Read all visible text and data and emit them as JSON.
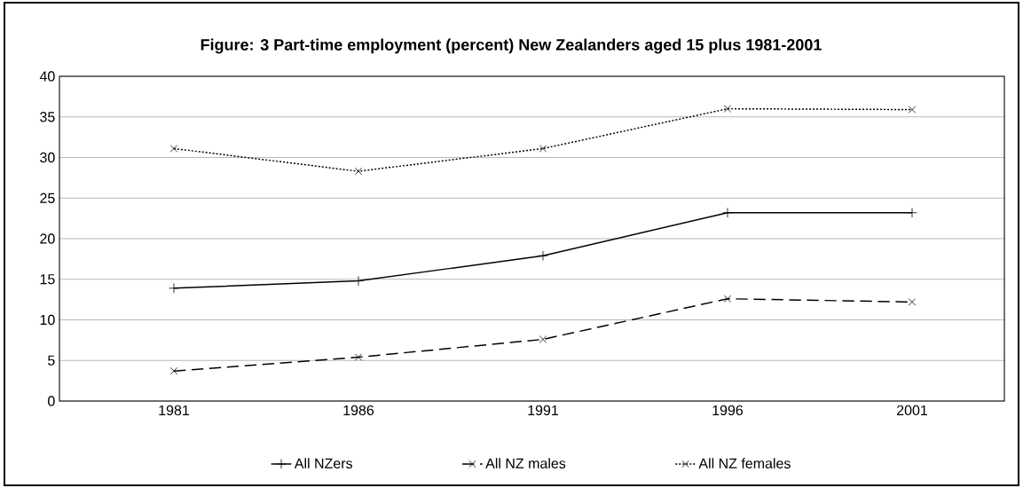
{
  "chart_data": {
    "type": "line",
    "title": "Figure: 3 Part-time employment (percent) New Zealanders aged 15 plus 1981-2001",
    "categories": [
      "1981",
      "1986",
      "1991",
      "1996",
      "2001"
    ],
    "series": [
      {
        "name": "All NZers",
        "color": "#000000",
        "values": [
          13.9,
          14.8,
          17.9,
          23.2,
          23.2
        ],
        "marker": "plus",
        "line_style": "solid"
      },
      {
        "name": "All NZ males",
        "color": "#000000",
        "values": [
          3.7,
          5.4,
          7.6,
          12.6,
          12.2
        ],
        "marker": "cross",
        "line_style": "dashed"
      },
      {
        "name": "All NZ females",
        "color": "#000000",
        "values": [
          31.1,
          28.3,
          31.1,
          36.0,
          35.9
        ],
        "marker": "cross",
        "line_style": "dotted"
      }
    ],
    "ylim": [
      0,
      40
    ],
    "yticks": [
      0,
      5,
      10,
      15,
      20,
      25,
      30,
      35,
      40
    ],
    "grid": "y",
    "legend": "bottom"
  }
}
